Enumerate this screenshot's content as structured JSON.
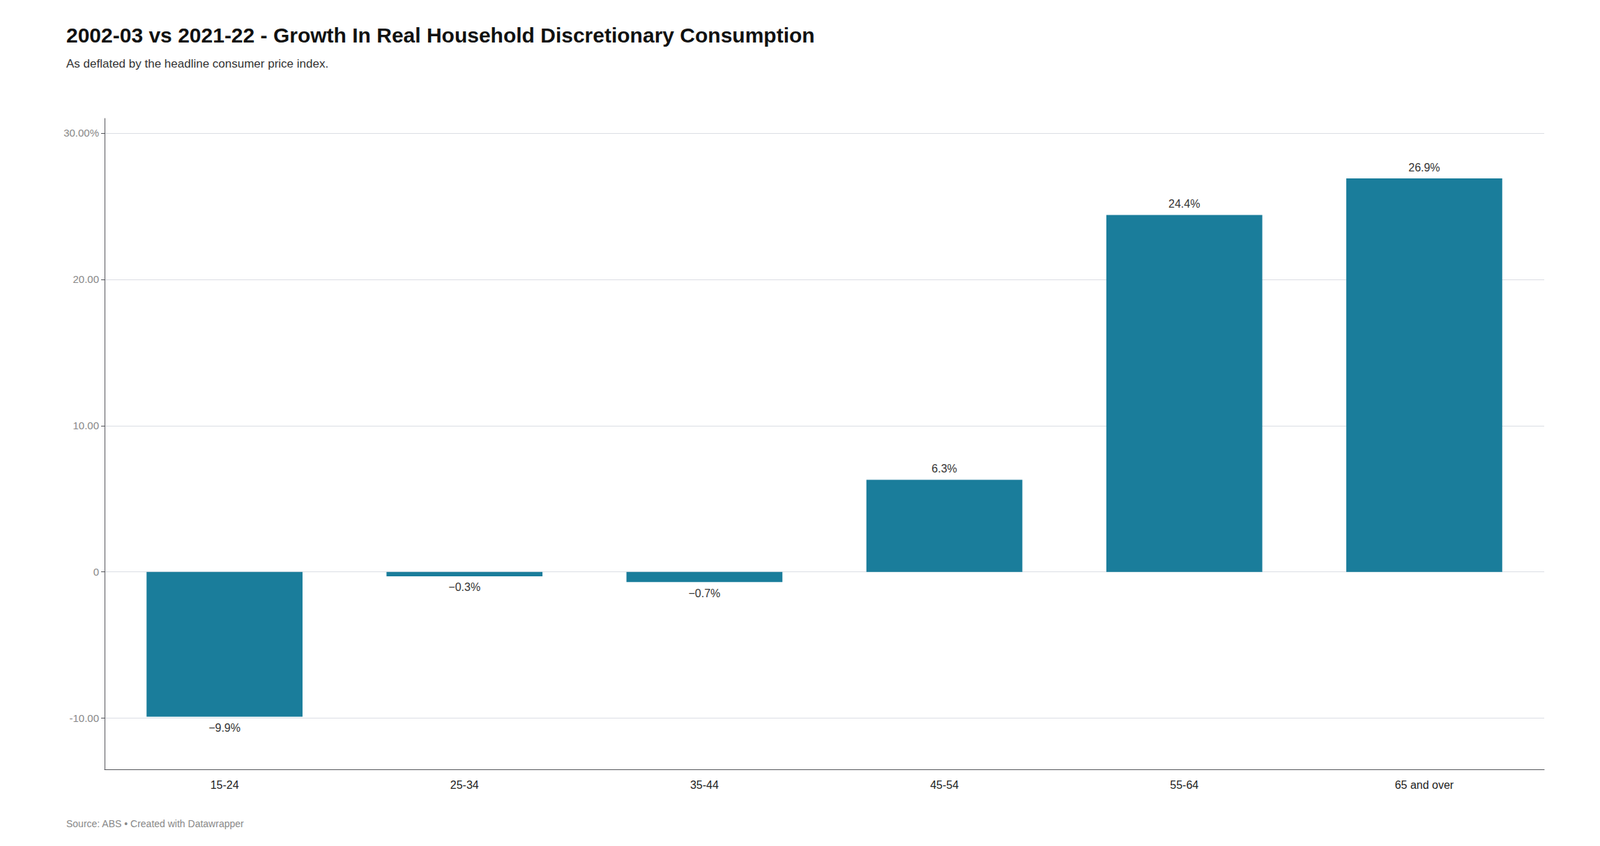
{
  "chart_data": {
    "type": "bar",
    "title": "2002-03 vs 2021-22 - Growth In Real Household Discretionary Consumption",
    "subtitle": "As deflated by the headline consumer price index.",
    "annotations": [
      "Source: ABS • Created with Datawrapper"
    ],
    "categories": [
      "15-24",
      "25-34",
      "35-44",
      "45-54",
      "55-64",
      "65 and over"
    ],
    "values": [
      -9.9,
      -0.3,
      -0.7,
      6.3,
      24.4,
      26.9
    ],
    "value_labels": [
      "−9.9%",
      "−0.3%",
      "−0.7%",
      "6.3%",
      "24.4%",
      "26.9%"
    ],
    "data_labels": true,
    "color": "#1a7d9b",
    "ylim": [
      -13.5,
      31
    ],
    "yticks": [
      {
        "value": -10,
        "label": "-10.00"
      },
      0,
      {
        "value": 10,
        "label": "10.00"
      },
      {
        "value": 20,
        "label": "20.00"
      },
      {
        "value": 30,
        "label": "30.00%"
      }
    ],
    "grid": true
  }
}
